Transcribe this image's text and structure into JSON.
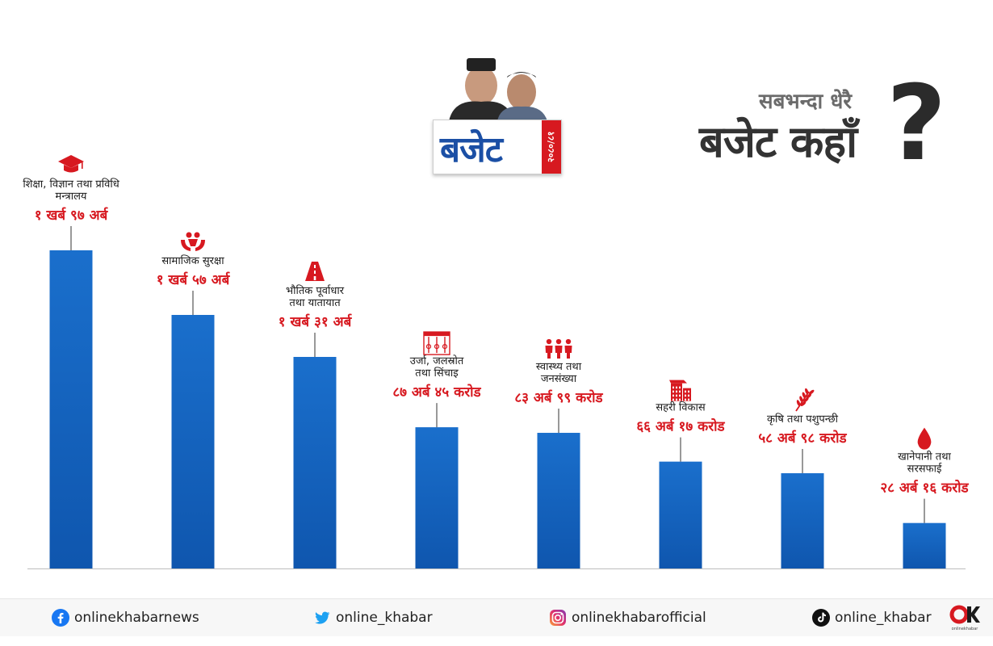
{
  "header": {
    "logo_word": "बजेट",
    "logo_year": "२०८०/८१",
    "headline_sub": "सबभन्दा धेरै",
    "headline_main": "बजेट कहाँ",
    "headline_q": "?"
  },
  "chart_data": {
    "type": "bar",
    "categories": [
      [
        "शिक्षा, विज्ञान तथा प्रविधि",
        "मन्त्रालय"
      ],
      [
        "सामाजिक सुरक्षा"
      ],
      [
        "भौतिक पूर्वाधार",
        "तथा यातायात"
      ],
      [
        "उर्जा, जलस्रोत",
        "तथा सिंचाइ"
      ],
      [
        "स्वास्थ्य तथा",
        "जनसंख्या"
      ],
      [
        "सहरी विकास"
      ],
      [
        "कृषि तथा पशुपन्छी"
      ],
      [
        "खानेपानी तथा",
        "सरसफाई"
      ]
    ],
    "value_labels": [
      "१ खर्ब ९७ अर्ब",
      "१ खर्ब ५७ अर्ब",
      "१ खर्ब ३१ अर्ब",
      "८७ अर्ब ४५ करोड",
      "८३ अर्ब ९९ करोड",
      "६६ अर्ब १७ करोड",
      "५८ अर्ब ९८ करोड",
      "२८ अर्ब १६ करोड"
    ],
    "values": [
      197,
      157,
      131,
      87.45,
      83.99,
      66.17,
      58.98,
      28.16
    ],
    "icons": [
      "graduation-cap-icon",
      "social-care-icon",
      "road-icon",
      "dam-icon",
      "people-icon",
      "buildings-icon",
      "wheat-icon",
      "water-drop-icon"
    ],
    "bar_color": "#1567c4",
    "label_color": "#d71920",
    "grid": false
  },
  "footer": {
    "facebook": "onlinekhabarnews",
    "twitter": "online_khabar",
    "instagram": "onlinekhabarofficial",
    "tiktok": "online_khabar",
    "brand": "onlinekhabar"
  }
}
